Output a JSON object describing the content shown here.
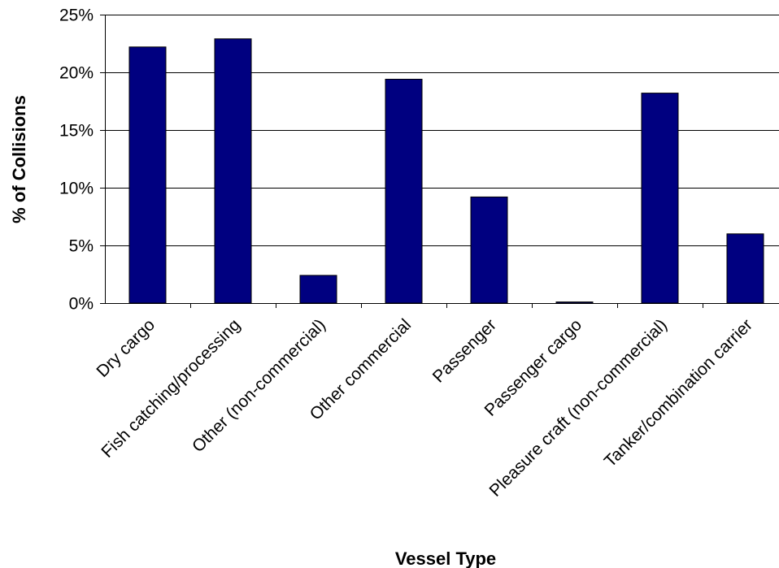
{
  "chart_data": {
    "type": "bar",
    "title": "",
    "xlabel": "Vessel Type",
    "ylabel": "% of Collisions",
    "categories": [
      "Dry cargo",
      "Fish catching/processing",
      "Other (non-commercial)",
      "Other commercial",
      "Passenger",
      "Passenger cargo",
      "Pleasure craft (non-commercial)",
      "Tanker/combination carrier"
    ],
    "values": [
      22.2,
      22.9,
      2.4,
      19.4,
      9.2,
      0.1,
      18.2,
      6.0
    ],
    "ylim": [
      0,
      25
    ],
    "yticks": [
      0,
      5,
      10,
      15,
      20,
      25
    ],
    "ytick_labels": [
      "0%",
      "5%",
      "10%",
      "15%",
      "20%",
      "25%"
    ],
    "grid": true,
    "legend": "none",
    "colors": {
      "bar": "#000080",
      "bar_stroke": "#000000",
      "grid": "#000000",
      "axis": "#000000"
    }
  }
}
